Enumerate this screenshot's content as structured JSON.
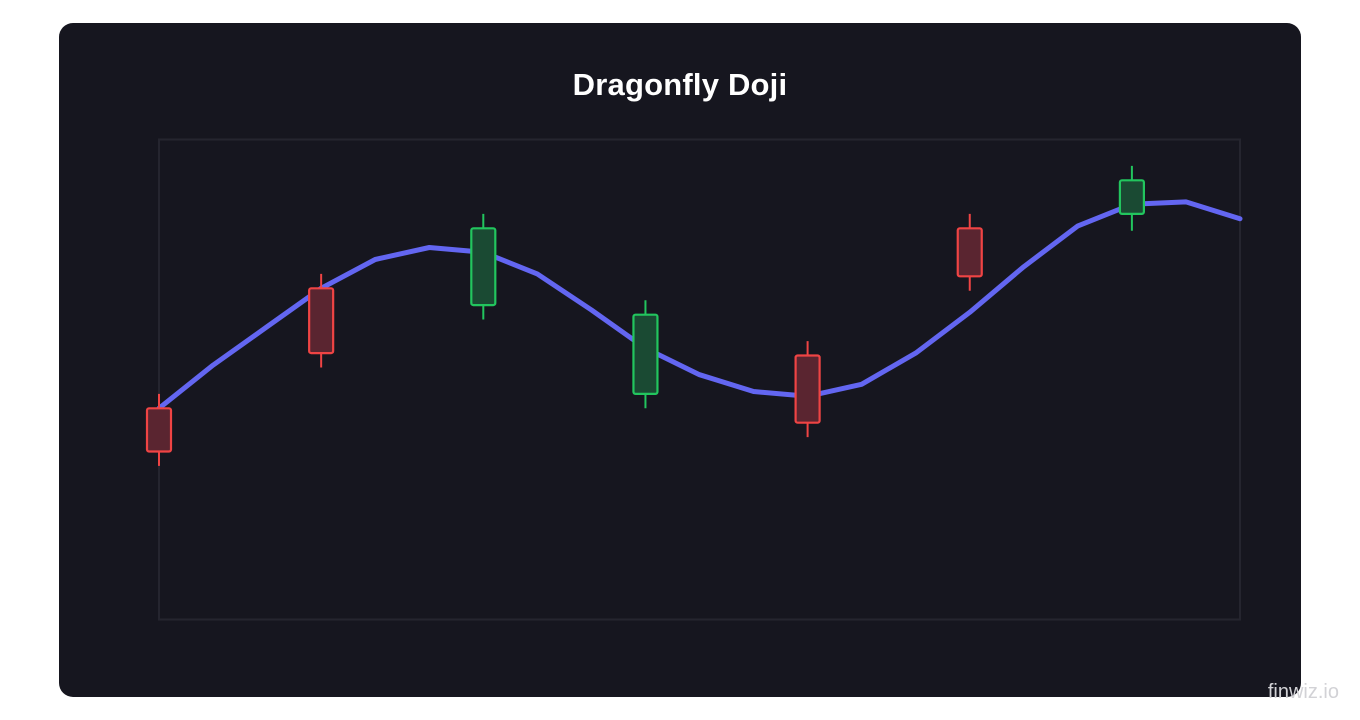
{
  "chart_data": {
    "type": "candlestick",
    "title": "Dragonfly Doji",
    "xlabel": "",
    "ylabel": "",
    "x": [
      0,
      1,
      2,
      3,
      4,
      5,
      6,
      7,
      8,
      9,
      10,
      11,
      12,
      13,
      14,
      15,
      16,
      17,
      18,
      19,
      20
    ],
    "ylim": [
      0,
      100
    ],
    "grid": false,
    "legend": "none",
    "series": [
      {
        "kind": "line",
        "color": "#6366f1",
        "values": [
          44.0,
          53.0,
          61.0,
          69.0,
          75.0,
          77.5,
          76.5,
          72.0,
          64.5,
          56.5,
          51.0,
          47.5,
          46.5,
          49.0,
          55.5,
          64.0,
          73.5,
          82.0,
          86.5,
          87.0,
          83.5
        ]
      },
      {
        "kind": "candles",
        "up_color": "#22c55e",
        "down_color": "#ef4444",
        "candles": [
          {
            "x": 0,
            "open": 44.0,
            "close": 35.0,
            "high": 47.0,
            "low": 32.0
          },
          {
            "x": 3,
            "open": 69.0,
            "close": 55.5,
            "high": 72.0,
            "low": 52.5
          },
          {
            "x": 6,
            "open": 65.5,
            "close": 81.5,
            "high": 84.5,
            "low": 62.5
          },
          {
            "x": 9,
            "open": 47.0,
            "close": 63.5,
            "high": 66.5,
            "low": 44.0
          },
          {
            "x": 12,
            "open": 55.0,
            "close": 41.0,
            "high": 58.0,
            "low": 38.0
          },
          {
            "x": 15,
            "open": 81.5,
            "close": 71.5,
            "high": 84.5,
            "low": 68.5
          },
          {
            "x": 18,
            "open": 84.5,
            "close": 91.5,
            "high": 94.5,
            "low": 81.0
          }
        ]
      }
    ]
  },
  "watermark": "finwiz.io"
}
